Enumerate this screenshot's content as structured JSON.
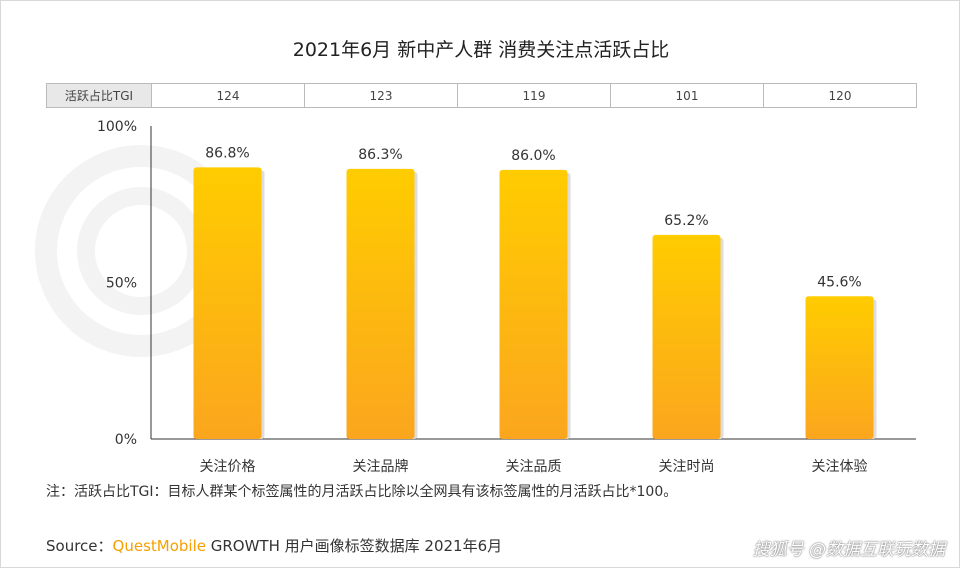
{
  "title": "2021年6月 新中产人群 消费关注点活跃占比",
  "tgi_row": {
    "label": "活跃占比TGI",
    "values": [
      "124",
      "123",
      "119",
      "101",
      "120"
    ]
  },
  "chart_data": {
    "type": "bar",
    "title": "2021年6月 新中产人群 消费关注点活跃占比",
    "categories": [
      "关注价格",
      "关注品牌",
      "关注品质",
      "关注时尚",
      "关注体验"
    ],
    "values": [
      86.8,
      86.3,
      86.0,
      65.2,
      45.6
    ],
    "data_labels": [
      "86.8%",
      "86.3%",
      "86.0%",
      "65.2%",
      "45.6%"
    ],
    "ylim": [
      0,
      100
    ],
    "yticks": [
      "0%",
      "50%",
      "100%"
    ],
    "grid": false,
    "colors": {
      "bar_top": "#ffcc00",
      "bar_bottom": "#fba61e"
    }
  },
  "note": "注：活跃占比TGI：目标人群某个标签属性的月活跃占比除以全网具有该标签属性的月活跃占比*100。",
  "source": {
    "prefix": "Source：",
    "brand": "QuestMobile",
    "text": " GROWTH 用户画像标签数据库 2021年6月"
  },
  "background_watermark": "QUESTMOBILE",
  "watermark": "搜狐号 @数据互联玩数据"
}
